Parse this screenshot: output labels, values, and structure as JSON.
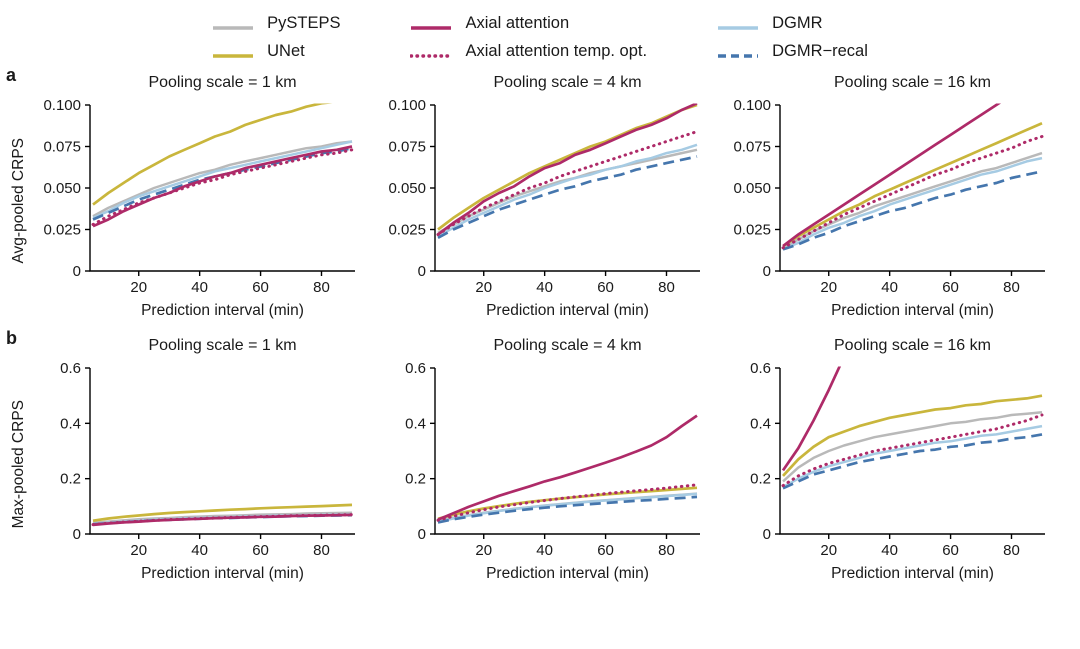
{
  "chart_data": {
    "type": "line",
    "x": [
      5,
      10,
      15,
      20,
      25,
      30,
      35,
      40,
      45,
      50,
      55,
      60,
      65,
      70,
      75,
      80,
      85,
      90
    ],
    "xlim": [
      4,
      91
    ],
    "xticks": [
      20,
      40,
      60,
      80
    ],
    "xlabel": "Prediction interval (min)",
    "axis_color": "#000000",
    "series": [
      {
        "name": "PySTEPS",
        "color": "#b9b9b9",
        "dash": "none",
        "width": 2.5,
        "z": 0
      },
      {
        "name": "UNet",
        "color": "#c9b63c",
        "dash": "none",
        "width": 2.7,
        "z": 2
      },
      {
        "name": "Axial attention",
        "color": "#ae2a68",
        "dash": "none",
        "width": 2.7,
        "z": 5
      },
      {
        "name": "Axial attention temp. opt.",
        "color": "#ae2a68",
        "dash": "dotted",
        "width": 3.0,
        "z": 4
      },
      {
        "name": "DGMR",
        "color": "#a6cbe3",
        "dash": "none",
        "width": 2.5,
        "z": 1
      },
      {
        "name": "DGMR−recal",
        "color": "#4576ad",
        "dash": "dashed",
        "width": 2.7,
        "z": 3
      }
    ],
    "rows": [
      {
        "label": "a",
        "ylabel": "Avg-pooled CRPS",
        "ylim": [
          0,
          0.1
        ],
        "yticks": [
          0,
          0.025,
          0.05,
          0.075,
          0.1
        ],
        "ytick_labels": [
          "0",
          "0.025",
          "0.050",
          "0.075",
          "0.100"
        ],
        "panels": [
          {
            "title": "Pooling scale = 1 km",
            "series": {
              "PySTEPS": [
                0.033,
                0.038,
                0.042,
                0.046,
                0.05,
                0.053,
                0.056,
                0.059,
                0.061,
                0.064,
                0.066,
                0.068,
                0.07,
                0.072,
                0.074,
                0.075,
                0.077,
                0.078
              ],
              "UNet": [
                0.04,
                0.047,
                0.053,
                0.059,
                0.064,
                0.069,
                0.073,
                0.077,
                0.081,
                0.084,
                0.088,
                0.091,
                0.094,
                0.096,
                0.099,
                0.101,
                0.102,
                0.104
              ],
              "Axial attention": [
                0.027,
                0.031,
                0.036,
                0.04,
                0.044,
                0.047,
                0.051,
                0.054,
                0.057,
                0.059,
                0.062,
                0.064,
                0.066,
                0.068,
                0.07,
                0.072,
                0.073,
                0.075
              ],
              "Axial attention temp. opt.": [
                0.028,
                0.033,
                0.037,
                0.041,
                0.044,
                0.047,
                0.05,
                0.053,
                0.055,
                0.058,
                0.06,
                0.062,
                0.064,
                0.066,
                0.068,
                0.07,
                0.071,
                0.073
              ],
              "DGMR": [
                0.032,
                0.036,
                0.041,
                0.045,
                0.048,
                0.051,
                0.054,
                0.057,
                0.06,
                0.062,
                0.064,
                0.066,
                0.068,
                0.07,
                0.072,
                0.074,
                0.076,
                0.078
              ],
              "DGMR−recal": [
                0.031,
                0.035,
                0.039,
                0.043,
                0.046,
                0.049,
                0.052,
                0.055,
                0.057,
                0.059,
                0.061,
                0.063,
                0.065,
                0.067,
                0.069,
                0.071,
                0.072,
                0.074
              ]
            }
          },
          {
            "title": "Pooling scale = 4 km",
            "series": {
              "PySTEPS": [
                0.023,
                0.028,
                0.033,
                0.037,
                0.041,
                0.045,
                0.048,
                0.051,
                0.054,
                0.056,
                0.059,
                0.061,
                0.063,
                0.065,
                0.067,
                0.069,
                0.071,
                0.073
              ],
              "UNet": [
                0.025,
                0.032,
                0.038,
                0.044,
                0.049,
                0.054,
                0.059,
                0.063,
                0.067,
                0.071,
                0.075,
                0.078,
                0.082,
                0.086,
                0.089,
                0.093,
                0.097,
                0.1
              ],
              "Axial attention": [
                0.022,
                0.029,
                0.035,
                0.042,
                0.047,
                0.051,
                0.057,
                0.062,
                0.065,
                0.07,
                0.073,
                0.077,
                0.081,
                0.085,
                0.088,
                0.092,
                0.097,
                0.101
              ],
              "Axial attention temp. opt.": [
                0.022,
                0.028,
                0.033,
                0.038,
                0.042,
                0.046,
                0.05,
                0.053,
                0.057,
                0.06,
                0.063,
                0.066,
                0.069,
                0.072,
                0.075,
                0.078,
                0.081,
                0.084
              ],
              "DGMR": [
                0.021,
                0.026,
                0.031,
                0.035,
                0.039,
                0.043,
                0.046,
                0.05,
                0.053,
                0.056,
                0.058,
                0.061,
                0.063,
                0.066,
                0.068,
                0.071,
                0.073,
                0.076
              ],
              "DGMR−recal": [
                0.02,
                0.025,
                0.029,
                0.033,
                0.037,
                0.04,
                0.043,
                0.046,
                0.049,
                0.051,
                0.054,
                0.056,
                0.058,
                0.061,
                0.063,
                0.065,
                0.067,
                0.069
              ]
            }
          },
          {
            "title": "Pooling scale = 16 km",
            "series": {
              "PySTEPS": [
                0.014,
                0.019,
                0.024,
                0.028,
                0.032,
                0.035,
                0.039,
                0.042,
                0.045,
                0.048,
                0.051,
                0.054,
                0.057,
                0.06,
                0.062,
                0.065,
                0.068,
                0.071
              ],
              "UNet": [
                0.015,
                0.021,
                0.026,
                0.031,
                0.036,
                0.04,
                0.045,
                0.049,
                0.053,
                0.057,
                0.061,
                0.065,
                0.069,
                0.073,
                0.077,
                0.081,
                0.085,
                0.089
              ],
              "Axial attention": [
                0.015,
                0.022,
                0.028,
                0.034,
                0.04,
                0.046,
                0.052,
                0.058,
                0.064,
                0.07,
                0.076,
                0.082,
                0.088,
                0.094,
                0.1,
                0.106,
                0.112,
                0.118
              ],
              "Axial attention temp. opt.": [
                0.014,
                0.019,
                0.024,
                0.029,
                0.034,
                0.038,
                0.042,
                0.046,
                0.05,
                0.054,
                0.058,
                0.061,
                0.065,
                0.068,
                0.071,
                0.074,
                0.078,
                0.081
              ],
              "DGMR": [
                0.013,
                0.017,
                0.022,
                0.026,
                0.029,
                0.033,
                0.036,
                0.04,
                0.043,
                0.046,
                0.049,
                0.052,
                0.055,
                0.058,
                0.06,
                0.063,
                0.066,
                0.068
              ],
              "DGMR−recal": [
                0.013,
                0.016,
                0.02,
                0.023,
                0.027,
                0.03,
                0.033,
                0.036,
                0.038,
                0.041,
                0.044,
                0.046,
                0.049,
                0.051,
                0.053,
                0.056,
                0.058,
                0.06
              ]
            }
          }
        ]
      },
      {
        "label": "b",
        "ylabel": "Max-pooled CRPS",
        "ylim": [
          0,
          0.6
        ],
        "yticks": [
          0,
          0.2,
          0.4,
          0.6
        ],
        "ytick_labels": [
          "0",
          "0.2",
          "0.4",
          "0.6"
        ],
        "panels": [
          {
            "title": "Pooling scale = 1 km",
            "series": {
              "PySTEPS": [
                0.04,
                0.045,
                0.049,
                0.053,
                0.056,
                0.058,
                0.061,
                0.063,
                0.065,
                0.066,
                0.068,
                0.07,
                0.071,
                0.072,
                0.074,
                0.075,
                0.076,
                0.077
              ],
              "UNet": [
                0.048,
                0.056,
                0.062,
                0.067,
                0.072,
                0.076,
                0.079,
                0.082,
                0.085,
                0.088,
                0.09,
                0.093,
                0.095,
                0.097,
                0.099,
                0.101,
                0.103,
                0.105
              ],
              "Axial attention": [
                0.033,
                0.038,
                0.042,
                0.045,
                0.048,
                0.051,
                0.053,
                0.055,
                0.057,
                0.059,
                0.06,
                0.062,
                0.063,
                0.065,
                0.066,
                0.067,
                0.068,
                0.069
              ],
              "Axial attention temp. opt.": [
                0.034,
                0.039,
                0.043,
                0.046,
                0.049,
                0.052,
                0.054,
                0.056,
                0.058,
                0.06,
                0.061,
                0.063,
                0.064,
                0.066,
                0.067,
                0.068,
                0.069,
                0.07
              ],
              "DGMR": [
                0.036,
                0.041,
                0.045,
                0.048,
                0.051,
                0.053,
                0.056,
                0.058,
                0.059,
                0.061,
                0.063,
                0.064,
                0.066,
                0.067,
                0.068,
                0.069,
                0.07,
                0.071
              ],
              "DGMR−recal": [
                0.035,
                0.039,
                0.043,
                0.046,
                0.049,
                0.051,
                0.053,
                0.055,
                0.057,
                0.058,
                0.06,
                0.061,
                0.063,
                0.064,
                0.065,
                0.066,
                0.067,
                0.068
              ]
            }
          },
          {
            "title": "Pooling scale = 4 km",
            "series": {
              "PySTEPS": [
                0.048,
                0.059,
                0.068,
                0.077,
                0.084,
                0.091,
                0.097,
                0.103,
                0.108,
                0.113,
                0.118,
                0.122,
                0.126,
                0.13,
                0.134,
                0.138,
                0.142,
                0.146
              ],
              "UNet": [
                0.055,
                0.07,
                0.082,
                0.092,
                0.101,
                0.109,
                0.116,
                0.122,
                0.128,
                0.133,
                0.138,
                0.143,
                0.147,
                0.151,
                0.155,
                0.159,
                0.163,
                0.167
              ],
              "Axial attention": [
                0.052,
                0.075,
                0.098,
                0.118,
                0.138,
                0.155,
                0.172,
                0.19,
                0.205,
                0.222,
                0.24,
                0.258,
                0.277,
                0.298,
                0.32,
                0.35,
                0.39,
                0.428
              ],
              "Axial attention temp. opt.": [
                0.05,
                0.064,
                0.077,
                0.088,
                0.098,
                0.106,
                0.114,
                0.121,
                0.128,
                0.134,
                0.14,
                0.146,
                0.151,
                0.156,
                0.161,
                0.166,
                0.172,
                0.178
              ],
              "DGMR": [
                0.044,
                0.056,
                0.066,
                0.075,
                0.083,
                0.09,
                0.096,
                0.102,
                0.107,
                0.112,
                0.117,
                0.121,
                0.125,
                0.129,
                0.133,
                0.137,
                0.141,
                0.145
              ],
              "DGMR−recal": [
                0.042,
                0.053,
                0.062,
                0.07,
                0.077,
                0.084,
                0.09,
                0.095,
                0.1,
                0.104,
                0.108,
                0.112,
                0.116,
                0.12,
                0.123,
                0.127,
                0.13,
                0.134
              ]
            }
          },
          {
            "title": "Pooling scale = 16 km",
            "series": {
              "PySTEPS": [
                0.19,
                0.24,
                0.275,
                0.3,
                0.32,
                0.335,
                0.35,
                0.36,
                0.37,
                0.38,
                0.39,
                0.4,
                0.405,
                0.415,
                0.42,
                0.43,
                0.435,
                0.44
              ],
              "UNet": [
                0.21,
                0.27,
                0.315,
                0.35,
                0.37,
                0.39,
                0.405,
                0.42,
                0.43,
                0.44,
                0.45,
                0.455,
                0.465,
                0.47,
                0.48,
                0.485,
                0.49,
                0.5
              ],
              "Axial attention": [
                0.23,
                0.31,
                0.41,
                0.52,
                0.64,
                null,
                null,
                null,
                null,
                null,
                null,
                null,
                null,
                null,
                null,
                null,
                null,
                null
              ],
              "Axial attention temp. opt.": [
                0.175,
                0.21,
                0.235,
                0.255,
                0.27,
                0.285,
                0.3,
                0.31,
                0.32,
                0.33,
                0.34,
                0.35,
                0.36,
                0.37,
                0.38,
                0.395,
                0.41,
                0.43
              ],
              "DGMR": [
                0.17,
                0.2,
                0.225,
                0.245,
                0.26,
                0.275,
                0.29,
                0.3,
                0.31,
                0.32,
                0.33,
                0.335,
                0.345,
                0.355,
                0.36,
                0.37,
                0.38,
                0.39
              ],
              "DGMR−recal": [
                0.165,
                0.19,
                0.215,
                0.23,
                0.245,
                0.26,
                0.27,
                0.28,
                0.29,
                0.3,
                0.305,
                0.315,
                0.32,
                0.33,
                0.335,
                0.345,
                0.35,
                0.36
              ]
            }
          }
        ]
      }
    ]
  }
}
